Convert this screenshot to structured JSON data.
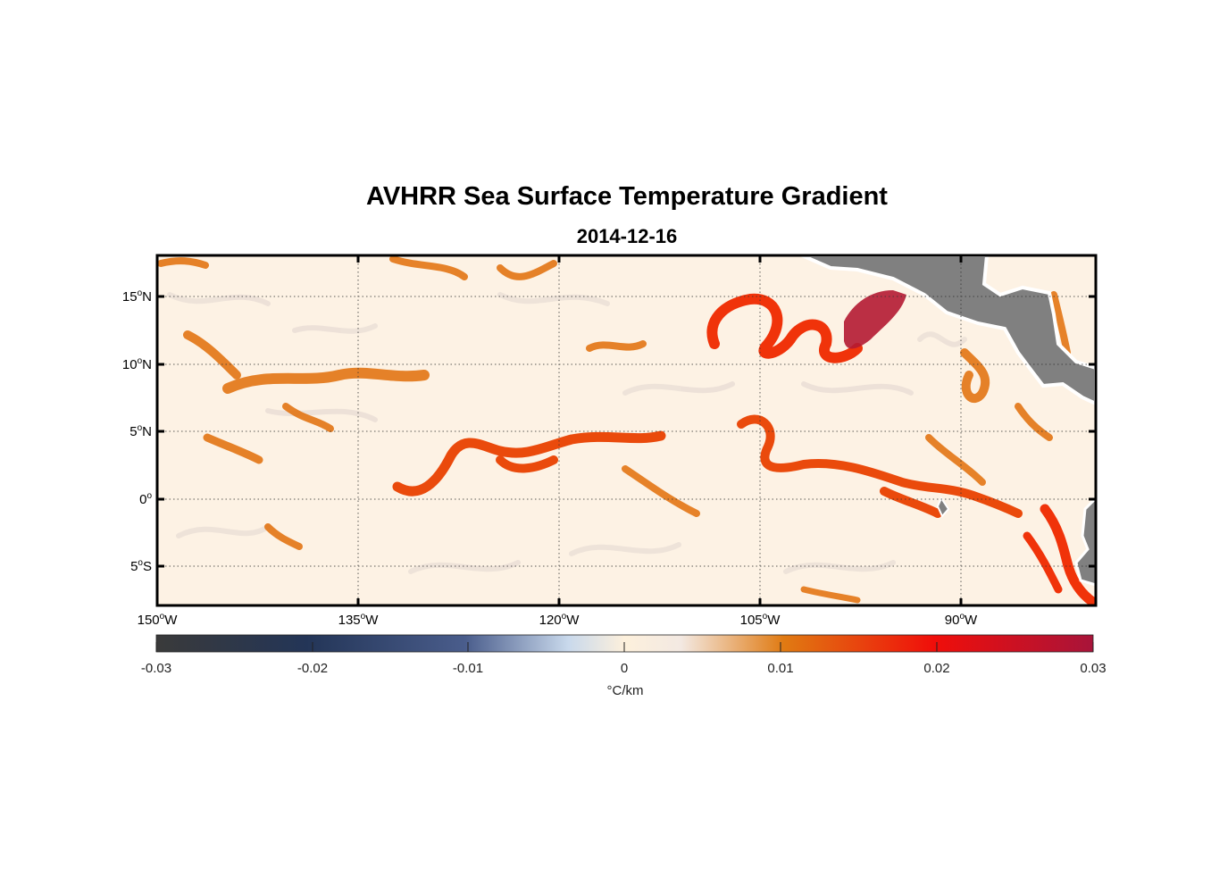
{
  "title": "AVHRR Sea Surface Temperature Gradient",
  "subtitle": "2014-12-16",
  "lat_labels": [
    {
      "value": 15,
      "deg": "15",
      "sup": "o",
      "hem": "N"
    },
    {
      "value": 10,
      "deg": "10",
      "sup": "o",
      "hem": "N"
    },
    {
      "value": 5,
      "deg": "5",
      "sup": "o",
      "hem": "N"
    },
    {
      "value": 0,
      "deg": "0",
      "sup": "o",
      "hem": ""
    },
    {
      "value": -5,
      "deg": "5",
      "sup": "o",
      "hem": "S"
    }
  ],
  "lon_labels": [
    {
      "value": -150,
      "deg": "150",
      "sup": "o",
      "hem": "W"
    },
    {
      "value": -135,
      "deg": "135",
      "sup": "o",
      "hem": "W"
    },
    {
      "value": -120,
      "deg": "120",
      "sup": "o",
      "hem": "W"
    },
    {
      "value": -105,
      "deg": "105",
      "sup": "o",
      "hem": "W"
    },
    {
      "value": -90,
      "deg": "90",
      "sup": "o",
      "hem": "W"
    }
  ],
  "map_extent": {
    "lon": [
      -150,
      -80
    ],
    "lat": [
      -8,
      18
    ]
  },
  "colorbar": {
    "min": -0.03,
    "max": 0.03,
    "ticks": [
      "-0.03",
      "-0.02",
      "-0.01",
      "0",
      "0.01",
      "0.02",
      "0.03"
    ],
    "unit": "°C/km",
    "colors": [
      "#3a3a3a",
      "#233557",
      "#4a5d8c",
      "#c9d9ec",
      "#fdf0dc",
      "#f3e9e2",
      "#e07a12",
      "#f00e0a",
      "#a8143a"
    ]
  },
  "land_color": "#808080",
  "background_color": "#fdf2e4"
}
